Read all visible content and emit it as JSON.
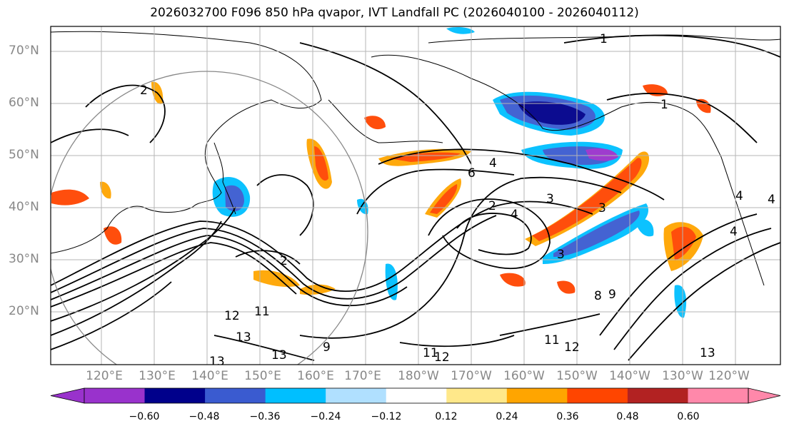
{
  "title": "2026032700 F096 850 hPa qvapor, IVT Landfall PC (2026040100 - 2026040112)",
  "lat_labels": [
    "70°N",
    "60°N",
    "50°N",
    "40°N",
    "30°N",
    "20°N"
  ],
  "lon_labels": [
    "120°E",
    "130°E",
    "140°E",
    "150°E",
    "160°E",
    "170°E",
    "180°W",
    "170°W",
    "160°W",
    "150°W",
    "140°W",
    "130°W",
    "120°W"
  ],
  "contour_labels": [
    "1",
    "1",
    "2",
    "6",
    "4",
    "2",
    "4",
    "3",
    "3",
    "2",
    "3",
    "13",
    "12",
    "11",
    "13",
    "13",
    "11",
    "12",
    "11",
    "12",
    "8",
    "9",
    "13",
    "4",
    "4",
    "4",
    "9"
  ],
  "colorbar": {
    "ticks": [
      "−0.60",
      "−0.48",
      "−0.36",
      "−0.24",
      "−0.12",
      "0.12",
      "0.24",
      "0.36",
      "0.48",
      "0.60"
    ],
    "colors": [
      "#9932cc",
      "#00008b",
      "#3a5bd0",
      "#00bfff",
      "#b0e0ff",
      "#ffffff",
      "#ffe88a",
      "#ffa500",
      "#ff4500",
      "#b22222",
      "#ff88aa"
    ]
  }
}
